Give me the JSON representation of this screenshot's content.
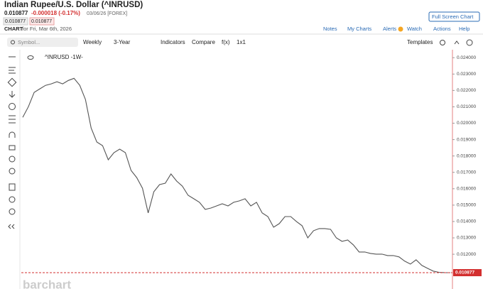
{
  "header": {
    "title": "Indian Rupee/U.S. Dollar (^INRUSD)",
    "last": "0.010877",
    "change": "-0.000018 (-0.17%)",
    "date_exchange": "03/06/26 [FOREX]",
    "bid": "0.010877",
    "ask": "0.010877",
    "chart_label": "CHART",
    "chart_date": "for Fri, Mar 6th, 2026",
    "full_screen": "Full Screen Chart"
  },
  "links": [
    "Notes",
    "My Charts",
    "Alerts",
    "Watch",
    "Actions",
    "Help"
  ],
  "toolbar": {
    "symbol_placeholder": "Symbol...",
    "items": [
      "Weekly",
      "3-Year",
      "Indicators",
      "Compare",
      "f(x)",
      "1x1"
    ],
    "templates": "Templates"
  },
  "chart_data": {
    "type": "line",
    "legend": "^INRUSD -1W-",
    "watermark": "barchart",
    "color": "#555555",
    "last_color": "#d32f2f",
    "categories": [
      null,
      null,
      null,
      null,
      null,
      null,
      null,
      null,
      null,
      null,
      null,
      null,
      null,
      null,
      null,
      null,
      null,
      null,
      null,
      null,
      null,
      null,
      null,
      null,
      null,
      null,
      null,
      null,
      null,
      null,
      null,
      null,
      null,
      null,
      null,
      null,
      null,
      null,
      null,
      null,
      null,
      null,
      null,
      null,
      null,
      null,
      null,
      null,
      null,
      null,
      null,
      null,
      null,
      null,
      null,
      null,
      null,
      null,
      null,
      null,
      null,
      null,
      null,
      null,
      null,
      null,
      null,
      null,
      null,
      null,
      null,
      null,
      null,
      null,
      null,
      null
    ],
    "values": [
      0.02036,
      0.02101,
      0.02188,
      0.0221,
      0.02231,
      0.0224,
      0.02253,
      0.0224,
      0.02261,
      0.02274,
      0.02231,
      0.02145,
      0.01971,
      0.01885,
      0.01863,
      0.01777,
      0.0182,
      0.01842,
      0.0182,
      0.01712,
      0.01668,
      0.01603,
      0.01452,
      0.01582,
      0.01625,
      0.01634,
      0.0169,
      0.01647,
      0.01616,
      0.0156,
      0.01539,
      0.01517,
      0.01474,
      0.01482,
      0.01495,
      0.01508,
      0.01495,
      0.01517,
      0.01526,
      0.01539,
      0.01495,
      0.01517,
      0.01452,
      0.0143,
      0.01365,
      0.01387,
      0.0143,
      0.0143,
      0.014,
      0.01374,
      0.013,
      0.01344,
      0.01357,
      0.01357,
      0.01352,
      0.013,
      0.01279,
      0.01287,
      0.01257,
      0.01214,
      0.01214,
      0.01205,
      0.01201,
      0.01201,
      0.01192,
      0.01192,
      0.01184,
      0.01158,
      0.0114,
      0.01166,
      0.01132,
      0.01114,
      0.01097,
      0.0109,
      0.01088,
      0.010877
    ],
    "last_price": 0.010877,
    "ylim": [
      0.0104,
      0.0244
    ],
    "yticks": [
      {
        "value": 0.012,
        "label": "0.012000"
      },
      {
        "value": 0.013,
        "label": "0.013000"
      },
      {
        "value": 0.014,
        "label": "0.014000"
      },
      {
        "value": 0.015,
        "label": "0.015000"
      },
      {
        "value": 0.016,
        "label": "0.016000"
      },
      {
        "value": 0.017,
        "label": "0.017000"
      },
      {
        "value": 0.018,
        "label": "0.018000"
      },
      {
        "value": 0.019,
        "label": "0.019000"
      },
      {
        "value": 0.02,
        "label": "0.020000"
      },
      {
        "value": 0.021,
        "label": "0.021000"
      },
      {
        "value": 0.022,
        "label": "0.022000"
      },
      {
        "value": 0.023,
        "label": "0.023000"
      },
      {
        "value": 0.024,
        "label": "0.024000"
      }
    ],
    "grid": false
  }
}
